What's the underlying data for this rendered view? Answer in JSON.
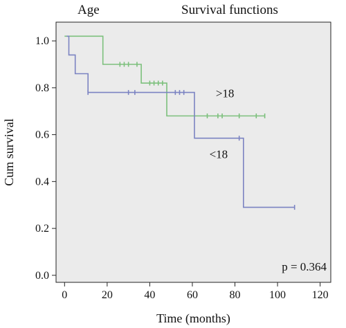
{
  "chart_data": {
    "type": "line",
    "title_left": "Age",
    "title": "Survival functions",
    "xlabel": "Time (months)",
    "ylabel": "Cum survival",
    "xlim": [
      -4,
      125
    ],
    "ylim": [
      -0.03,
      1.08
    ],
    "x_ticks": [
      0,
      20,
      40,
      60,
      80,
      100,
      120
    ],
    "y_ticks": [
      0.0,
      0.2,
      0.4,
      0.6,
      0.8,
      1.0
    ],
    "x_tick_labels": [
      "0",
      "20",
      "40",
      "60",
      "80",
      "100",
      "120"
    ],
    "y_tick_labels": [
      "0.0",
      "0.2",
      "0.4",
      "0.6",
      "0.8",
      "1.0"
    ],
    "grid": false,
    "background": "#ebebeb",
    "series": [
      {
        "name": ">18",
        "color": "#7cc07c",
        "steps": [
          [
            0,
            1.02
          ],
          [
            18,
            1.02
          ],
          [
            18,
            0.9
          ],
          [
            36,
            0.9
          ],
          [
            36,
            0.82
          ],
          [
            48,
            0.82
          ],
          [
            48,
            0.68
          ],
          [
            94,
            0.68
          ]
        ],
        "censored": [
          [
            26,
            0.9
          ],
          [
            28,
            0.9
          ],
          [
            30,
            0.9
          ],
          [
            34,
            0.9
          ],
          [
            40,
            0.82
          ],
          [
            42,
            0.82
          ],
          [
            44,
            0.82
          ],
          [
            46,
            0.82
          ],
          [
            67,
            0.68
          ],
          [
            72,
            0.68
          ],
          [
            74,
            0.68
          ],
          [
            82,
            0.68
          ],
          [
            90,
            0.68
          ],
          [
            94,
            0.68
          ]
        ],
        "label": ">18",
        "label_pos": [
          71,
          0.76
        ]
      },
      {
        "name": "<18",
        "color": "#7b83c2",
        "steps": [
          [
            1,
            1.02
          ],
          [
            2,
            1.02
          ],
          [
            2,
            0.94
          ],
          [
            5,
            0.94
          ],
          [
            5,
            0.86
          ],
          [
            11,
            0.86
          ],
          [
            11,
            0.78
          ],
          [
            61,
            0.78
          ],
          [
            61,
            0.585
          ],
          [
            84,
            0.585
          ],
          [
            84,
            0.29
          ],
          [
            108,
            0.29
          ]
        ],
        "censored": [
          [
            11,
            0.78
          ],
          [
            30,
            0.78
          ],
          [
            33,
            0.78
          ],
          [
            52,
            0.78
          ],
          [
            54,
            0.78
          ],
          [
            56,
            0.78
          ],
          [
            82,
            0.585
          ],
          [
            108,
            0.29
          ]
        ],
        "label": "<18",
        "label_pos": [
          68,
          0.5
        ]
      }
    ],
    "annotation": "p = 0.364",
    "annotation_pos": [
      102,
      0.02
    ]
  }
}
